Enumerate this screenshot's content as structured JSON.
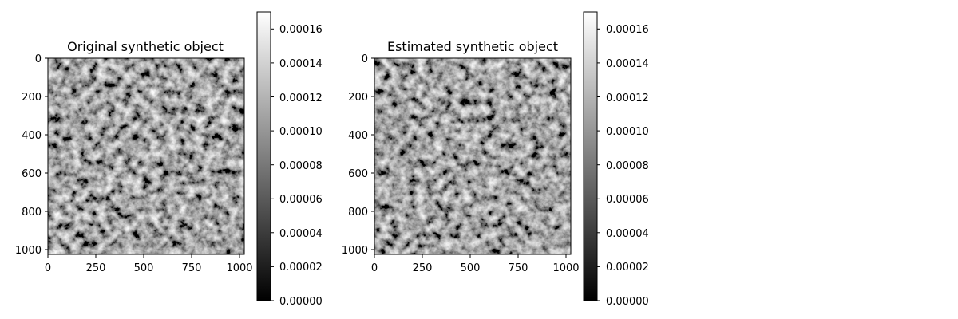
{
  "chart_data": [
    {
      "type": "heatmap",
      "title": "Original synthetic object",
      "colormap": "gray",
      "xlim": [
        0,
        1024
      ],
      "ylim": [
        1024,
        0
      ],
      "x_ticks": [
        "0",
        "250",
        "500",
        "750",
        "1000"
      ],
      "y_ticks": [
        "0",
        "200",
        "400",
        "600",
        "800",
        "1000"
      ],
      "colorbar": {
        "range": [
          0.0,
          0.00017
        ],
        "ticks": [
          "0.00000",
          "0.00002",
          "0.00004",
          "0.00006",
          "0.00008",
          "0.00010",
          "0.00012",
          "0.00014",
          "0.00016"
        ]
      }
    },
    {
      "type": "heatmap",
      "title": "Estimated synthetic object",
      "colormap": "gray",
      "xlim": [
        0,
        1024
      ],
      "ylim": [
        1024,
        0
      ],
      "x_ticks": [
        "0",
        "250",
        "500",
        "750",
        "1000"
      ],
      "y_ticks": [
        "0",
        "200",
        "400",
        "600",
        "800",
        "1000"
      ],
      "colorbar": {
        "range": [
          0.0,
          0.00017
        ],
        "ticks": [
          "0.00000",
          "0.00002",
          "0.00004",
          "0.00006",
          "0.00008",
          "0.00010",
          "0.00012",
          "0.00014",
          "0.00016"
        ]
      }
    }
  ]
}
